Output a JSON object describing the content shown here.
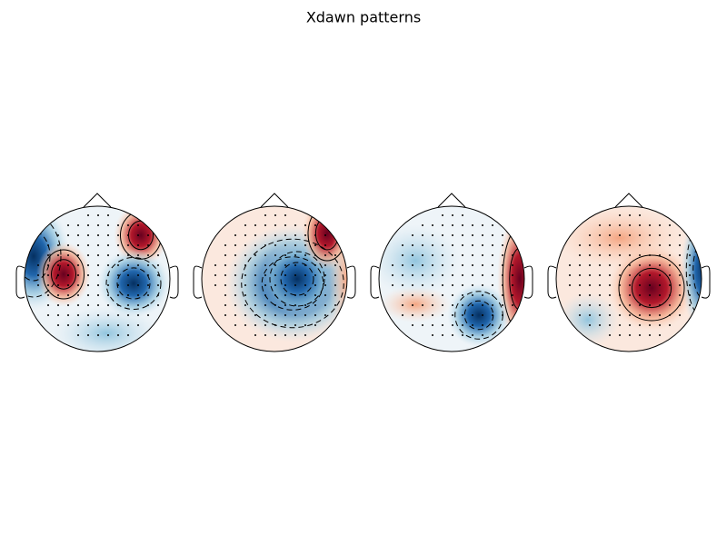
{
  "figure": {
    "title": "Xdawn patterns"
  }
}
